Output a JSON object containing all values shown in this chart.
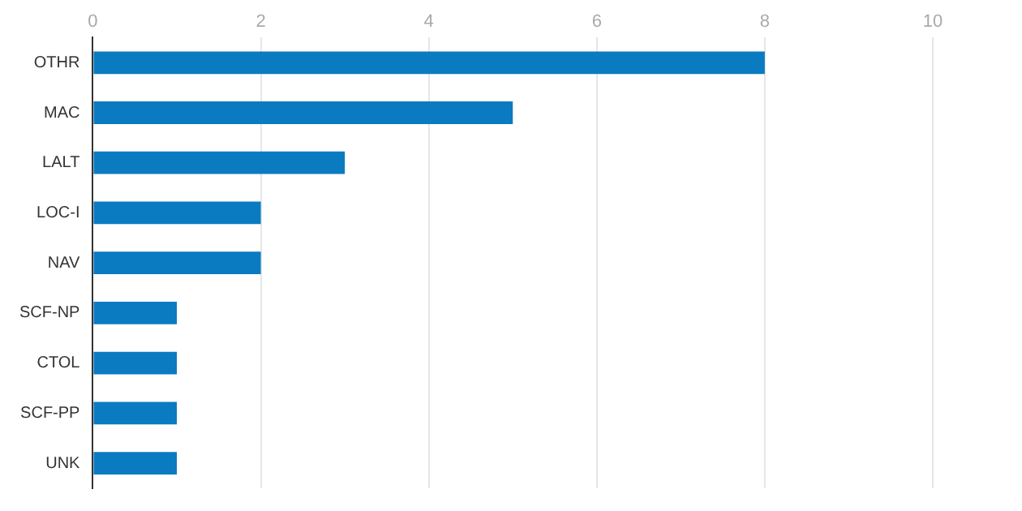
{
  "chart_data": {
    "type": "bar",
    "orientation": "horizontal",
    "categories": [
      "OTHR",
      "MAC",
      "LALT",
      "LOC-I",
      "NAV",
      "SCF-NP",
      "CTOL",
      "SCF-PP",
      "UNK"
    ],
    "values": [
      8,
      5,
      3,
      2,
      2,
      1,
      1,
      1,
      1
    ],
    "color": "#0a7bc1",
    "xlim": [
      0,
      10
    ],
    "xticks": [
      0,
      2,
      4,
      6,
      8,
      10
    ],
    "grid": "x",
    "legend": false
  }
}
